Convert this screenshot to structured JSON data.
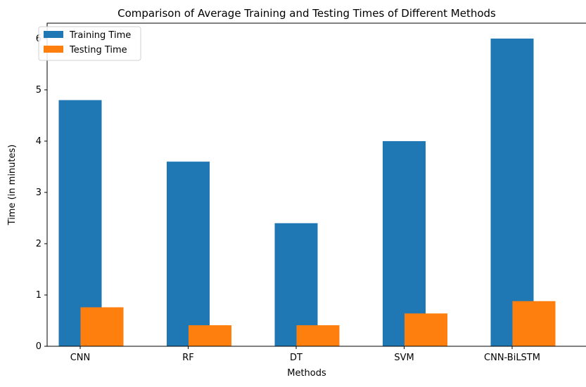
{
  "chart_data": {
    "type": "bar",
    "title": "Comparison of Average Training and Testing Times of Different Methods",
    "xlabel": "Methods",
    "ylabel": "Time (in minutes)",
    "categories": [
      "CNN",
      "RF",
      "DT",
      "SVM",
      "CNN-BiLSTM"
    ],
    "series": [
      {
        "name": "Training Time",
        "values": [
          4.8,
          3.6,
          2.4,
          4.0,
          6.0
        ],
        "color": "#1f77b4"
      },
      {
        "name": "Testing Time",
        "values": [
          0.76,
          0.41,
          0.41,
          0.64,
          0.88
        ],
        "color": "#ff7f0e"
      }
    ],
    "ylim": [
      0,
      6.3
    ],
    "yticks": [
      0,
      1,
      2,
      3,
      4,
      5,
      6
    ],
    "grid": false,
    "legend": "top-left"
  }
}
